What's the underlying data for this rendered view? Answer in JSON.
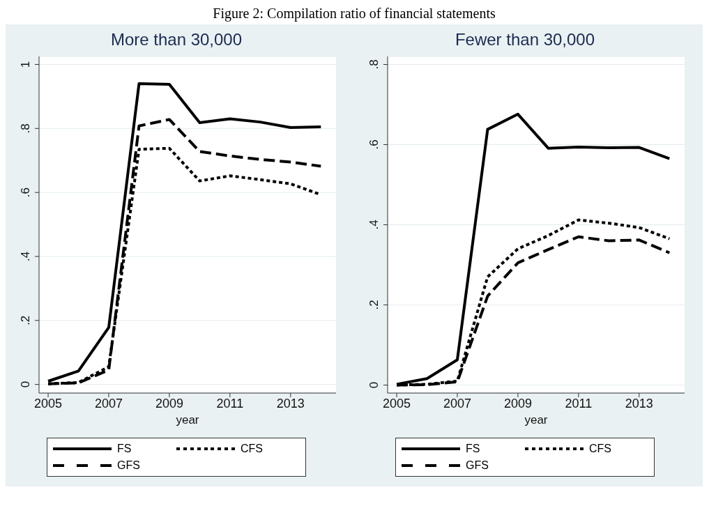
{
  "chart_data": [
    {
      "type": "line",
      "title": "More than 30,000",
      "xlabel": "year",
      "annotations": [
        "Figure 2: Compilation ratio of financial statements"
      ],
      "x": [
        2005,
        2006,
        2007,
        2008,
        2009,
        2010,
        2011,
        2012,
        2013,
        2014
      ],
      "series": [
        {
          "name": "FS",
          "color": "#000000",
          "line_style": "solid",
          "values": [
            0.01,
            0.042,
            0.178,
            0.94,
            0.938,
            0.818,
            0.83,
            0.82,
            0.803,
            0.805
          ]
        },
        {
          "name": "CFS",
          "color": "#000000",
          "line_style": "dotted",
          "values": [
            0.002,
            0.006,
            0.055,
            0.735,
            0.738,
            0.636,
            0.652,
            0.64,
            0.627,
            0.593
          ]
        },
        {
          "name": "GFS",
          "color": "#000000",
          "line_style": "dashed",
          "values": [
            0.002,
            0.005,
            0.045,
            0.808,
            0.828,
            0.728,
            0.714,
            0.703,
            0.695,
            0.682
          ]
        }
      ],
      "xlim": [
        2004.7,
        2014.5
      ],
      "xticks": [
        2005,
        2007,
        2009,
        2011,
        2013
      ],
      "ylim": [
        -0.027,
        1.025
      ],
      "yticks": [
        {
          "value": 0,
          "label": "0"
        },
        {
          "value": 0.2,
          "label": ".2"
        },
        {
          "value": 0.4,
          "label": ".4"
        },
        {
          "value": 0.6,
          "label": ".6"
        },
        {
          "value": 0.8,
          "label": ".8"
        },
        {
          "value": 1,
          "label": "1"
        }
      ],
      "grid": "y",
      "legend": "bottom",
      "marker": "none"
    },
    {
      "type": "line",
      "title": "Fewer than 30,000",
      "xlabel": "year",
      "x": [
        2005,
        2006,
        2007,
        2008,
        2009,
        2010,
        2011,
        2012,
        2013,
        2014
      ],
      "series": [
        {
          "name": "FS",
          "color": "#000000",
          "line_style": "solid",
          "values": [
            0.002,
            0.016,
            0.063,
            0.638,
            0.676,
            0.591,
            0.594,
            0.592,
            0.593,
            0.565
          ]
        },
        {
          "name": "CFS",
          "color": "#000000",
          "line_style": "dotted",
          "values": [
            0.0,
            0.002,
            0.01,
            0.27,
            0.34,
            0.373,
            0.412,
            0.404,
            0.393,
            0.365
          ]
        },
        {
          "name": "GFS",
          "color": "#000000",
          "line_style": "dashed",
          "values": [
            0.0,
            0.001,
            0.008,
            0.222,
            0.305,
            0.338,
            0.37,
            0.36,
            0.362,
            0.33
          ]
        }
      ],
      "xlim": [
        2004.7,
        2014.5
      ],
      "xticks": [
        2005,
        2007,
        2009,
        2011,
        2013
      ],
      "ylim": [
        -0.02,
        0.82
      ],
      "yticks": [
        {
          "value": 0,
          "label": "0"
        },
        {
          "value": 0.2,
          "label": ".2"
        },
        {
          "value": 0.4,
          "label": ".4"
        },
        {
          "value": 0.6,
          "label": ".6"
        },
        {
          "value": 0.8,
          "label": ".8"
        }
      ],
      "grid": "y",
      "legend": "bottom",
      "marker": "none"
    }
  ]
}
